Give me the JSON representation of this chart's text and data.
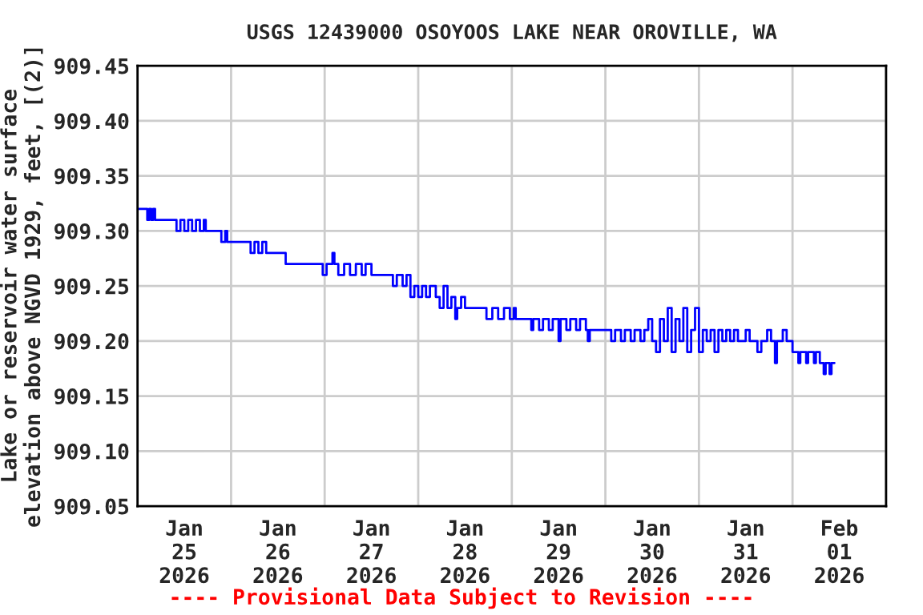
{
  "chart_data": {
    "type": "step",
    "title": "USGS 12439000 OSOYOOS LAKE NEAR OROVILLE, WA",
    "ylabel": "Lake or reservoir water surface\nelevation above NGVD 1929, feet, [(2)]",
    "annotations": [
      "---- Provisional Data Subject to Revision ----"
    ],
    "x": [
      "2026-01-25T00:00",
      "2026-01-25T02:30",
      "2026-01-25T03:00",
      "2026-01-25T03:30",
      "2026-01-25T04:00",
      "2026-01-25T04:30",
      "2026-01-25T10:00",
      "2026-01-25T11:00",
      "2026-01-25T12:00",
      "2026-01-25T13:00",
      "2026-01-25T14:00",
      "2026-01-25T15:00",
      "2026-01-25T16:00",
      "2026-01-25T17:00",
      "2026-01-25T17:30",
      "2026-01-25T21:30",
      "2026-01-25T22:30",
      "2026-01-25T23:00",
      "2026-01-26T05:00",
      "2026-01-26T06:00",
      "2026-01-26T07:00",
      "2026-01-26T08:00",
      "2026-01-26T09:00",
      "2026-01-26T14:00",
      "2026-01-26T23:30",
      "2026-01-27T00:30",
      "2026-01-27T02:00",
      "2026-01-27T02:30",
      "2026-01-27T03:30",
      "2026-01-27T05:00",
      "2026-01-27T06:30",
      "2026-01-27T08:00",
      "2026-01-27T09:30",
      "2026-01-27T10:30",
      "2026-01-27T12:00",
      "2026-01-27T17:30",
      "2026-01-27T18:30",
      "2026-01-27T20:00",
      "2026-01-27T21:00",
      "2026-01-27T22:00",
      "2026-01-27T23:00",
      "2026-01-28T00:00",
      "2026-01-28T01:00",
      "2026-01-28T02:00",
      "2026-01-28T03:00",
      "2026-01-28T04:30",
      "2026-01-28T05:30",
      "2026-01-28T06:30",
      "2026-01-28T07:30",
      "2026-01-28T08:30",
      "2026-01-28T09:30",
      "2026-01-28T10:00",
      "2026-01-28T11:00",
      "2026-01-28T12:00",
      "2026-01-28T17:30",
      "2026-01-28T19:00",
      "2026-01-28T20:30",
      "2026-01-28T22:00",
      "2026-01-28T23:30",
      "2026-01-29T00:30",
      "2026-01-29T01:00",
      "2026-01-29T05:00",
      "2026-01-29T05:30",
      "2026-01-29T07:00",
      "2026-01-29T08:00",
      "2026-01-29T09:30",
      "2026-01-29T10:30",
      "2026-01-29T12:00",
      "2026-01-29T12:30",
      "2026-01-29T14:00",
      "2026-01-29T15:00",
      "2026-01-29T16:30",
      "2026-01-29T17:30",
      "2026-01-29T19:00",
      "2026-01-29T19:30",
      "2026-01-29T20:00",
      "2026-01-30T01:30",
      "2026-01-30T02:30",
      "2026-01-30T04:00",
      "2026-01-30T05:00",
      "2026-01-30T06:30",
      "2026-01-30T07:30",
      "2026-01-30T09:00",
      "2026-01-30T10:00",
      "2026-01-30T11:00",
      "2026-01-30T12:00",
      "2026-01-30T13:00",
      "2026-01-30T14:00",
      "2026-01-30T15:00",
      "2026-01-30T16:00",
      "2026-01-30T17:00",
      "2026-01-30T18:00",
      "2026-01-30T19:00",
      "2026-01-30T20:00",
      "2026-01-30T21:00",
      "2026-01-30T22:00",
      "2026-01-30T23:00",
      "2026-01-31T00:00",
      "2026-01-31T01:00",
      "2026-01-31T02:00",
      "2026-01-31T03:00",
      "2026-01-31T04:00",
      "2026-01-31T05:00",
      "2026-01-31T06:00",
      "2026-01-31T07:00",
      "2026-01-31T08:00",
      "2026-01-31T09:00",
      "2026-01-31T10:00",
      "2026-01-31T12:00",
      "2026-01-31T13:00",
      "2026-01-31T15:00",
      "2026-01-31T16:00",
      "2026-01-31T17:30",
      "2026-01-31T18:30",
      "2026-01-31T19:30",
      "2026-01-31T20:00",
      "2026-01-31T21:30",
      "2026-01-31T22:30",
      "2026-02-01T00:00",
      "2026-02-01T01:30",
      "2026-02-01T02:00",
      "2026-02-01T03:30",
      "2026-02-01T04:00",
      "2026-02-01T05:30",
      "2026-02-01T06:00",
      "2026-02-01T07:00",
      "2026-02-01T08:00",
      "2026-02-01T08:30",
      "2026-02-01T09:30",
      "2026-02-01T10:00",
      "2026-02-01T10:45"
    ],
    "series": [
      {
        "color": "#0000ff",
        "values": [
          909.32,
          909.31,
          909.32,
          909.31,
          909.32,
          909.31,
          909.3,
          909.31,
          909.3,
          909.31,
          909.3,
          909.31,
          909.3,
          909.31,
          909.3,
          909.29,
          909.3,
          909.29,
          909.28,
          909.29,
          909.28,
          909.29,
          909.28,
          909.27,
          909.26,
          909.27,
          909.28,
          909.27,
          909.26,
          909.27,
          909.26,
          909.27,
          909.26,
          909.27,
          909.26,
          909.25,
          909.26,
          909.25,
          909.26,
          909.24,
          909.25,
          909.24,
          909.25,
          909.24,
          909.25,
          909.24,
          909.23,
          909.25,
          909.23,
          909.24,
          909.22,
          909.23,
          909.24,
          909.23,
          909.22,
          909.23,
          909.22,
          909.23,
          909.22,
          909.23,
          909.22,
          909.21,
          909.22,
          909.21,
          909.22,
          909.21,
          909.22,
          909.2,
          909.22,
          909.21,
          909.22,
          909.21,
          909.22,
          909.21,
          909.2,
          909.21,
          909.2,
          909.21,
          909.2,
          909.21,
          909.2,
          909.21,
          909.2,
          909.21,
          909.22,
          909.2,
          909.19,
          909.22,
          909.2,
          909.23,
          909.19,
          909.22,
          909.2,
          909.23,
          909.19,
          909.21,
          909.23,
          909.19,
          909.21,
          909.2,
          909.21,
          909.19,
          909.21,
          909.2,
          909.21,
          909.2,
          909.21,
          909.2,
          909.21,
          909.2,
          909.19,
          909.2,
          909.21,
          909.2,
          909.18,
          909.2,
          909.21,
          909.2,
          909.19,
          909.18,
          909.19,
          909.18,
          909.19,
          909.18,
          909.19,
          909.18,
          909.17,
          909.18,
          909.17,
          909.18,
          909.18
        ]
      }
    ],
    "xlim": [
      "2026-01-25T00:00",
      "2026-02-02T00:00"
    ],
    "xticks": [
      {
        "value": "2026-01-25T00:00",
        "label": null
      },
      {
        "value": "2026-01-26T00:00",
        "label": null
      },
      {
        "value": "2026-01-27T00:00",
        "label": null
      },
      {
        "value": "2026-01-28T00:00",
        "label": null
      },
      {
        "value": "2026-01-29T00:00",
        "label": null
      },
      {
        "value": "2026-01-30T00:00",
        "label": null
      },
      {
        "value": "2026-01-31T00:00",
        "label": null
      },
      {
        "value": "2026-02-01T00:00",
        "label": null
      },
      {
        "value": "2026-02-02T00:00",
        "label": null
      },
      {
        "value": "2026-01-25T12:00",
        "label": "Jan\n25\n2026"
      },
      {
        "value": "2026-01-26T12:00",
        "label": "Jan\n26\n2026"
      },
      {
        "value": "2026-01-27T12:00",
        "label": "Jan\n27\n2026"
      },
      {
        "value": "2026-01-28T12:00",
        "label": "Jan\n28\n2026"
      },
      {
        "value": "2026-01-29T12:00",
        "label": "Jan\n29\n2026"
      },
      {
        "value": "2026-01-30T12:00",
        "label": "Jan\n30\n2026"
      },
      {
        "value": "2026-01-31T12:00",
        "label": "Jan\n31\n2026"
      },
      {
        "value": "2026-02-01T12:00",
        "label": "Feb\n01\n2026"
      }
    ],
    "ylim": [
      909.05,
      909.45
    ],
    "yticks": [
      909.05,
      {
        "value": 909.1,
        "label": "909.10"
      },
      909.15,
      {
        "value": 909.2,
        "label": "909.20"
      },
      909.25,
      {
        "value": 909.3,
        "label": "909.30"
      },
      909.35,
      {
        "value": 909.4,
        "label": "909.40"
      },
      909.45
    ],
    "grid": true,
    "line_style": "solid"
  }
}
